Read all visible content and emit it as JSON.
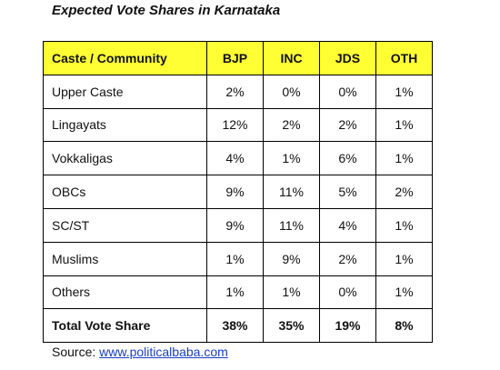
{
  "title": "Expected Vote Shares in Karnataka",
  "table": {
    "headers": [
      "Caste / Community",
      "BJP",
      "INC",
      "JDS",
      "OTH"
    ],
    "rows": [
      [
        "Upper Caste",
        "2%",
        "0%",
        "0%",
        "1%"
      ],
      [
        "Lingayats",
        "12%",
        "2%",
        "2%",
        "1%"
      ],
      [
        "Vokkaligas",
        "4%",
        "1%",
        "6%",
        "1%"
      ],
      [
        "OBCs",
        "9%",
        "11%",
        "5%",
        "2%"
      ],
      [
        "SC/ST",
        "9%",
        "11%",
        "4%",
        "1%"
      ],
      [
        "Muslims",
        "1%",
        "9%",
        "2%",
        "1%"
      ],
      [
        "Others",
        "1%",
        "1%",
        "0%",
        "1%"
      ]
    ],
    "total": [
      "Total Vote Share",
      "38%",
      "35%",
      "19%",
      "8%"
    ]
  },
  "source": {
    "label": "Source:",
    "link_text": "www.politicalbaba.com"
  },
  "colors": {
    "header_bg": "#ffff33",
    "link": "#1a3ec8",
    "border": "#000000"
  }
}
